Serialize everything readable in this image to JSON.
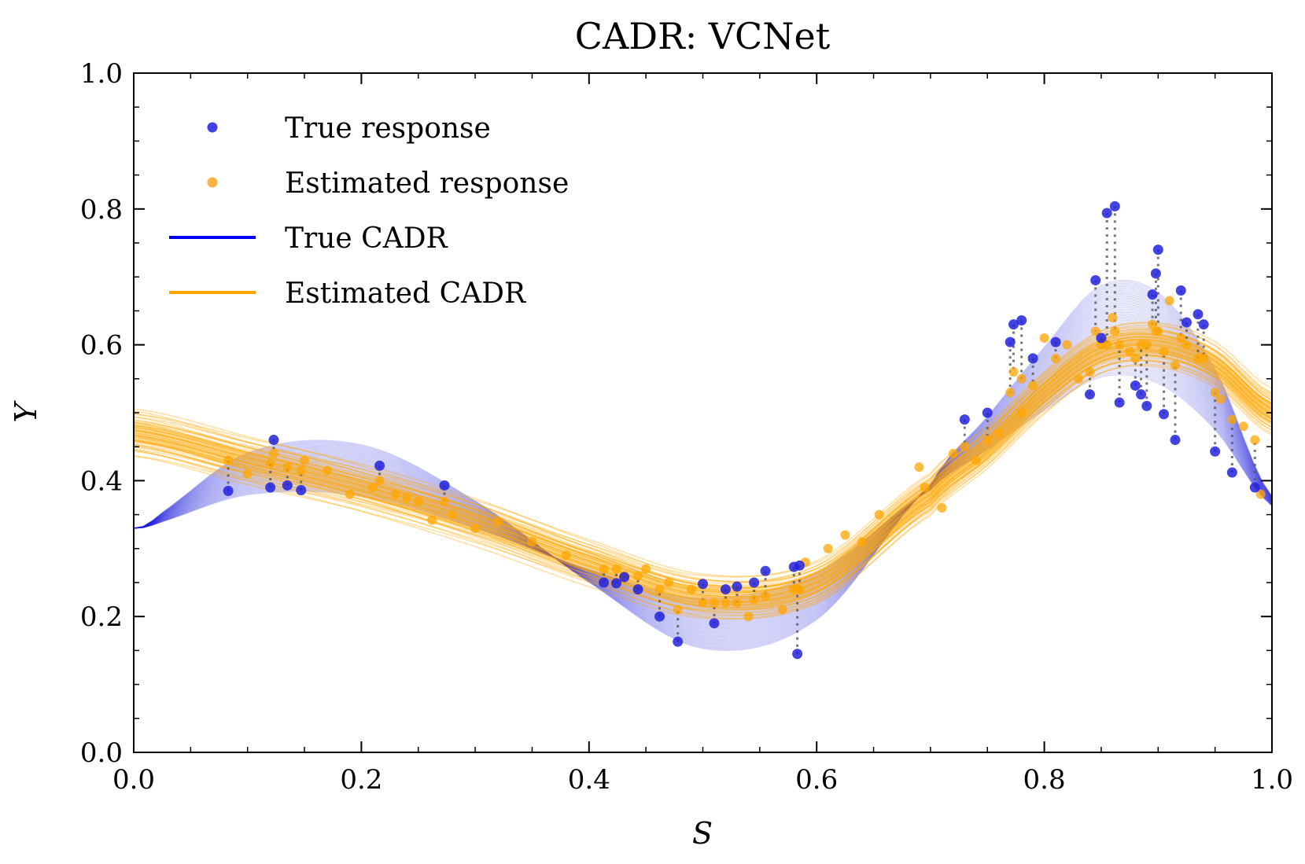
{
  "chart_data": {
    "type": "line",
    "title": "CADR: VCNet",
    "xlabel": "S",
    "ylabel": "Y",
    "xlim": [
      0.0,
      1.0
    ],
    "ylim": [
      0.0,
      1.0
    ],
    "x_ticks": [
      "0.0",
      "0.2",
      "0.4",
      "0.6",
      "0.8",
      "1.0"
    ],
    "y_ticks": [
      "0.0",
      "0.2",
      "0.4",
      "0.6",
      "0.8",
      "1.0"
    ],
    "legend_position": "top-left",
    "legend": [
      {
        "label": "True response",
        "kind": "marker",
        "color": "#1f1fe0"
      },
      {
        "label": "Estimated response",
        "kind": "marker",
        "color": "#f5a623"
      },
      {
        "label": "True CADR",
        "kind": "line",
        "color": "#0000ee"
      },
      {
        "label": "Estimated CADR",
        "kind": "line",
        "color": "#ffa500"
      }
    ],
    "colors": {
      "true": "#2222dd",
      "estimated": "#ffa500",
      "connector": "#555555"
    },
    "curve_count": 60,
    "true_cadr_mean": {
      "x": [
        0.0,
        0.1,
        0.2,
        0.3,
        0.4,
        0.5,
        0.6,
        0.7,
        0.75,
        0.8,
        0.85,
        0.9,
        0.95,
        1.0
      ],
      "y": [
        0.33,
        0.41,
        0.415,
        0.35,
        0.26,
        0.19,
        0.23,
        0.39,
        0.47,
        0.55,
        0.62,
        0.61,
        0.52,
        0.37
      ]
    },
    "estimated_cadr_mean": {
      "x": [
        0.0,
        0.1,
        0.2,
        0.3,
        0.4,
        0.5,
        0.6,
        0.7,
        0.75,
        0.8,
        0.85,
        0.9,
        0.95,
        1.0
      ],
      "y": [
        0.47,
        0.43,
        0.39,
        0.34,
        0.28,
        0.23,
        0.25,
        0.38,
        0.45,
        0.53,
        0.59,
        0.6,
        0.57,
        0.5
      ]
    },
    "true_response": {
      "x": [
        0.083,
        0.12,
        0.123,
        0.135,
        0.147,
        0.216,
        0.273,
        0.413,
        0.424,
        0.431,
        0.443,
        0.462,
        0.478,
        0.5,
        0.51,
        0.52,
        0.53,
        0.545,
        0.555,
        0.58,
        0.583,
        0.585,
        0.73,
        0.75,
        0.77,
        0.773,
        0.78,
        0.79,
        0.81,
        0.84,
        0.845,
        0.85,
        0.855,
        0.862,
        0.866,
        0.88,
        0.885,
        0.89,
        0.895,
        0.898,
        0.9,
        0.905,
        0.915,
        0.92,
        0.925,
        0.935,
        0.94,
        0.95,
        0.965,
        0.985
      ],
      "y": [
        0.385,
        0.39,
        0.46,
        0.393,
        0.386,
        0.422,
        0.393,
        0.25,
        0.249,
        0.258,
        0.24,
        0.2,
        0.163,
        0.248,
        0.19,
        0.24,
        0.244,
        0.25,
        0.267,
        0.273,
        0.145,
        0.275,
        0.49,
        0.5,
        0.604,
        0.63,
        0.636,
        0.58,
        0.604,
        0.527,
        0.695,
        0.61,
        0.794,
        0.804,
        0.515,
        0.54,
        0.527,
        0.51,
        0.674,
        0.705,
        0.74,
        0.498,
        0.46,
        0.68,
        0.633,
        0.645,
        0.63,
        0.443,
        0.412,
        0.39
      ],
      "estimated_y": [
        0.43,
        0.425,
        0.44,
        0.42,
        0.415,
        0.4,
        0.37,
        0.27,
        0.27,
        0.26,
        0.26,
        0.24,
        0.21,
        0.22,
        0.22,
        0.22,
        0.22,
        0.225,
        0.23,
        0.24,
        0.24,
        0.24,
        0.45,
        0.46,
        0.53,
        0.56,
        0.55,
        0.54,
        0.58,
        0.56,
        0.62,
        0.6,
        0.6,
        0.62,
        0.6,
        0.58,
        0.6,
        0.6,
        0.63,
        0.62,
        0.62,
        0.59,
        0.57,
        0.61,
        0.6,
        0.58,
        0.58,
        0.53,
        0.49,
        0.46
      ]
    },
    "estimated_response_extra": {
      "x": [
        0.1,
        0.15,
        0.17,
        0.19,
        0.21,
        0.23,
        0.24,
        0.25,
        0.262,
        0.28,
        0.3,
        0.32,
        0.35,
        0.38,
        0.45,
        0.47,
        0.49,
        0.54,
        0.57,
        0.59,
        0.61,
        0.625,
        0.64,
        0.655,
        0.69,
        0.695,
        0.71,
        0.72,
        0.74,
        0.76,
        0.78,
        0.8,
        0.82,
        0.83,
        0.86,
        0.875,
        0.91,
        0.955,
        0.975,
        0.99
      ],
      "y": [
        0.41,
        0.43,
        0.415,
        0.38,
        0.39,
        0.38,
        0.375,
        0.37,
        0.342,
        0.35,
        0.33,
        0.34,
        0.31,
        0.29,
        0.27,
        0.25,
        0.24,
        0.2,
        0.21,
        0.28,
        0.3,
        0.32,
        0.31,
        0.35,
        0.42,
        0.39,
        0.36,
        0.44,
        0.43,
        0.47,
        0.5,
        0.61,
        0.6,
        0.55,
        0.64,
        0.59,
        0.665,
        0.52,
        0.48,
        0.38
      ]
    }
  }
}
